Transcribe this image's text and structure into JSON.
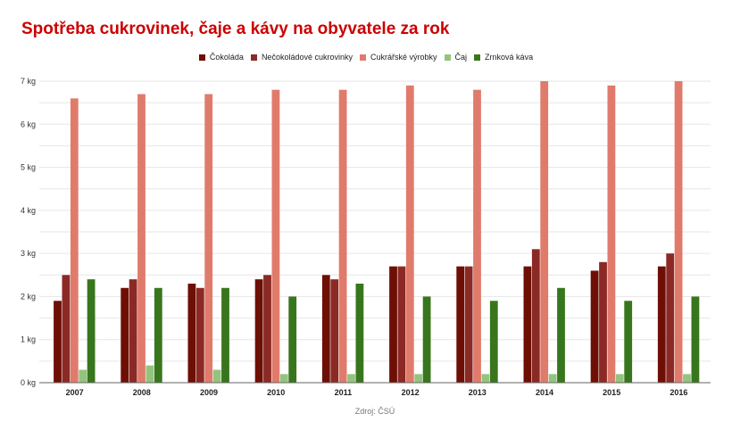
{
  "title": "Spotřeba cukrovinek, čaje a kávy na obyvatele za rok",
  "source": "Zdroj: ČSÚ",
  "legend": [
    {
      "label": "Čokoláda",
      "color": "#6e0f05"
    },
    {
      "label": "Nečokoládové cukrovinky",
      "color": "#8b2a25"
    },
    {
      "label": "Cukrářské výrobky",
      "color": "#e07b6c"
    },
    {
      "label": "Čaj",
      "color": "#93c47d"
    },
    {
      "label": "Zrnková káva",
      "color": "#38761d"
    }
  ],
  "chart_data": {
    "type": "bar",
    "title": "Spotřeba cukrovinek, čaje a kávy na obyvatele za rok",
    "xlabel": "",
    "ylabel": "",
    "ylim": [
      0,
      7
    ],
    "y_ticks": [
      "0 kg",
      "1 kg",
      "2 kg",
      "3 kg",
      "4 kg",
      "5 kg",
      "6 kg",
      "7 kg"
    ],
    "grid": true,
    "legend_position": "top",
    "categories": [
      "2007",
      "2008",
      "2009",
      "2010",
      "2011",
      "2012",
      "2013",
      "2014",
      "2015",
      "2016"
    ],
    "series": [
      {
        "name": "Čokoláda",
        "color": "#6e0f05",
        "values": [
          1.9,
          2.2,
          2.3,
          2.4,
          2.5,
          2.7,
          2.7,
          2.7,
          2.6,
          2.7
        ]
      },
      {
        "name": "Nečokoládové cukrovinky",
        "color": "#8b2a25",
        "values": [
          2.5,
          2.4,
          2.2,
          2.5,
          2.4,
          2.7,
          2.7,
          3.1,
          2.8,
          3.0
        ]
      },
      {
        "name": "Cukrářské výrobky",
        "color": "#e07b6c",
        "values": [
          6.6,
          6.7,
          6.7,
          6.8,
          6.8,
          6.9,
          6.8,
          7.0,
          6.9,
          7.0
        ]
      },
      {
        "name": "Čaj",
        "color": "#93c47d",
        "values": [
          0.3,
          0.4,
          0.3,
          0.2,
          0.2,
          0.2,
          0.2,
          0.2,
          0.2,
          0.2
        ]
      },
      {
        "name": "Zrnková káva",
        "color": "#38761d",
        "values": [
          2.4,
          2.2,
          2.2,
          2.0,
          2.3,
          2.0,
          1.9,
          2.2,
          1.9,
          2.0
        ]
      }
    ],
    "source": "Zdroj: ČSÚ"
  }
}
